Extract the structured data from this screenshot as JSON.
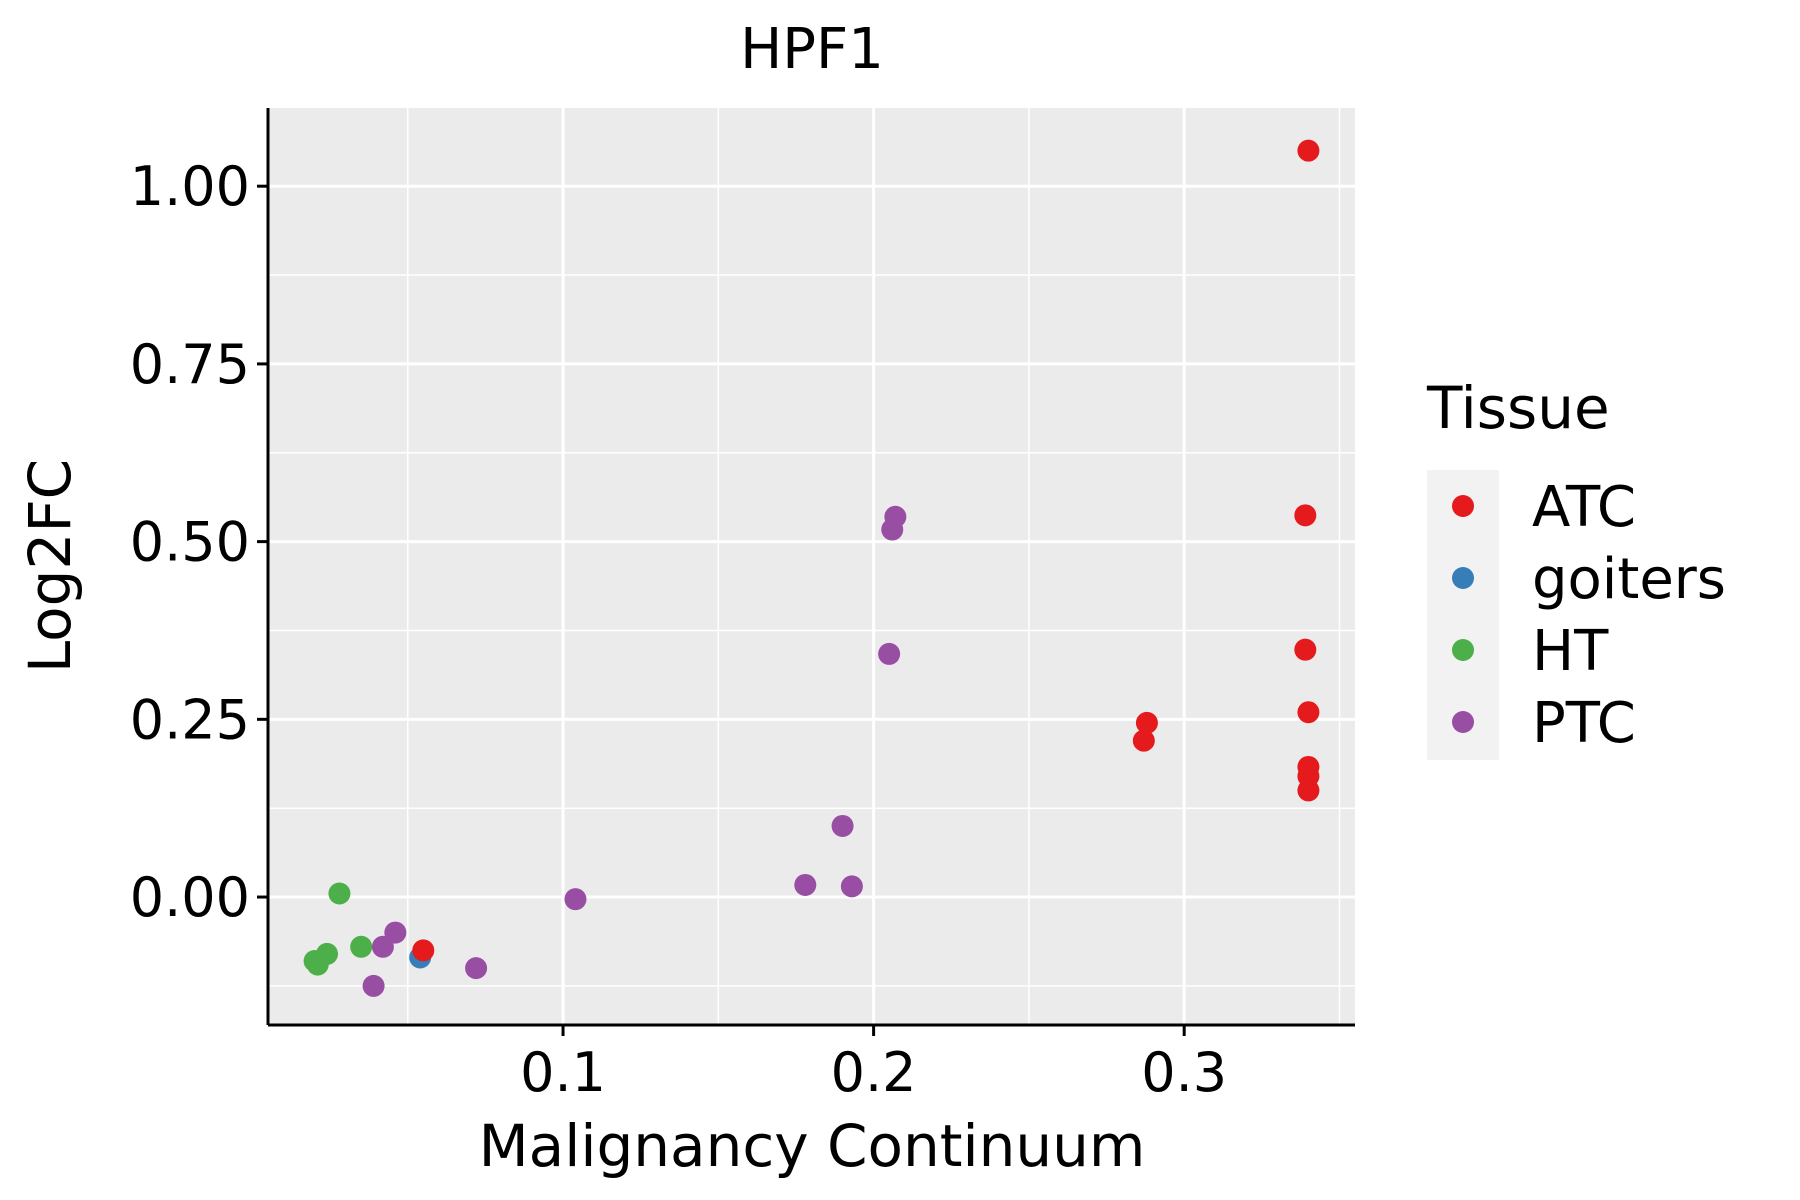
{
  "chart_data": {
    "type": "scatter",
    "title": "HPF1",
    "xlabel": "Malignancy Continuum",
    "ylabel": "Log2FC",
    "xlim": [
      0.005,
      0.355
    ],
    "ylim": [
      -0.18,
      1.11
    ],
    "x_ticks": [
      0.1,
      0.2,
      0.3
    ],
    "x_tick_labels": [
      "0.1",
      "0.2",
      "0.3"
    ],
    "x_minor_ticks": [
      0.05,
      0.15,
      0.25,
      0.35
    ],
    "y_ticks": [
      0.0,
      0.25,
      0.5,
      0.75,
      1.0
    ],
    "y_tick_labels": [
      "0.00",
      "0.25",
      "0.50",
      "0.75",
      "1.00"
    ],
    "y_minor_ticks": [
      -0.125,
      0.125,
      0.375,
      0.625,
      0.875
    ],
    "grid": true,
    "legend": {
      "title": "Tissue",
      "position": "right",
      "entries": [
        {
          "label": "ATC",
          "color": "#E41A1C"
        },
        {
          "label": "goiters",
          "color": "#377EB8"
        },
        {
          "label": "HT",
          "color": "#4DAF4A"
        },
        {
          "label": "PTC",
          "color": "#984EA3"
        }
      ]
    },
    "series": [
      {
        "name": "goiters",
        "color": "#377EB8",
        "points": [
          {
            "x": 0.054,
            "y": -0.085
          }
        ]
      },
      {
        "name": "HT",
        "color": "#4DAF4A",
        "points": [
          {
            "x": 0.02,
            "y": -0.09
          },
          {
            "x": 0.021,
            "y": -0.095
          },
          {
            "x": 0.024,
            "y": -0.08
          },
          {
            "x": 0.028,
            "y": 0.005
          },
          {
            "x": 0.035,
            "y": -0.07
          }
        ]
      },
      {
        "name": "PTC",
        "color": "#984EA3",
        "points": [
          {
            "x": 0.039,
            "y": -0.125
          },
          {
            "x": 0.042,
            "y": -0.07
          },
          {
            "x": 0.046,
            "y": -0.05
          },
          {
            "x": 0.072,
            "y": -0.1
          },
          {
            "x": 0.104,
            "y": -0.003
          },
          {
            "x": 0.178,
            "y": 0.017
          },
          {
            "x": 0.19,
            "y": 0.1
          },
          {
            "x": 0.193,
            "y": 0.015
          },
          {
            "x": 0.205,
            "y": 0.342
          },
          {
            "x": 0.206,
            "y": 0.517
          },
          {
            "x": 0.207,
            "y": 0.535
          }
        ]
      },
      {
        "name": "ATC",
        "color": "#E41A1C",
        "points": [
          {
            "x": 0.055,
            "y": -0.075
          },
          {
            "x": 0.287,
            "y": 0.22
          },
          {
            "x": 0.288,
            "y": 0.245
          },
          {
            "x": 0.339,
            "y": 0.348
          },
          {
            "x": 0.339,
            "y": 0.537
          },
          {
            "x": 0.34,
            "y": 1.05
          },
          {
            "x": 0.34,
            "y": 0.26
          },
          {
            "x": 0.34,
            "y": 0.183
          },
          {
            "x": 0.34,
            "y": 0.17
          },
          {
            "x": 0.34,
            "y": 0.15
          }
        ]
      }
    ]
  }
}
